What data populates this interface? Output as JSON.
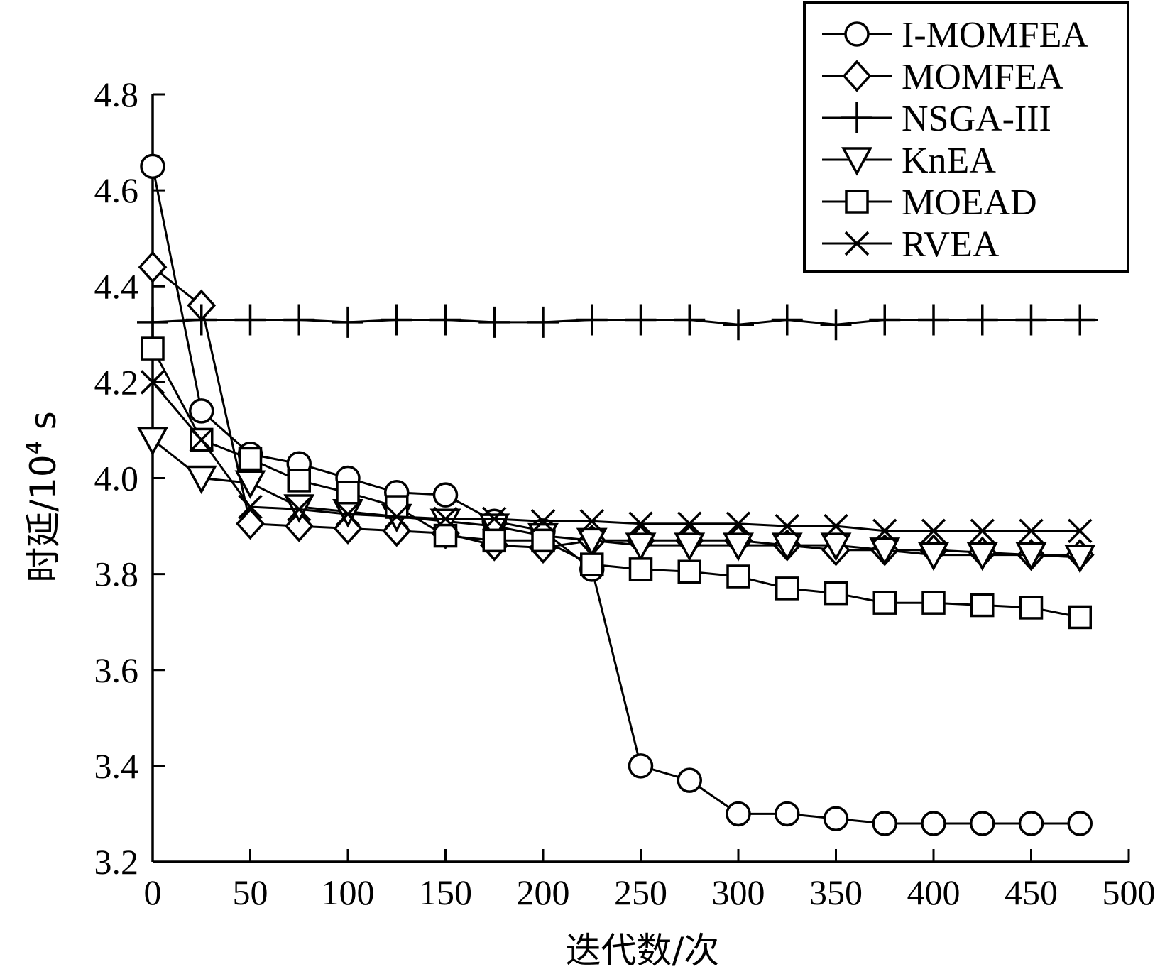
{
  "chart_data": {
    "type": "line",
    "title": "",
    "xlabel": "迭代数/次",
    "ylabel_main": "时延/10",
    "ylabel_sup": "4",
    "ylabel_unit": " s",
    "xlim": [
      0,
      500
    ],
    "ylim": [
      3.2,
      4.8
    ],
    "xticks": [
      0,
      50,
      100,
      150,
      200,
      250,
      300,
      350,
      400,
      450,
      500
    ],
    "yticks": [
      "3.2",
      "3.4",
      "3.6",
      "3.8",
      "4.0",
      "4.2",
      "4.4",
      "4.6",
      "4.8"
    ],
    "grid": false,
    "legend_position": "top-right",
    "x": [
      0,
      25,
      50,
      75,
      100,
      125,
      150,
      175,
      200,
      225,
      250,
      275,
      300,
      325,
      350,
      375,
      400,
      425,
      450,
      475
    ],
    "series": [
      {
        "name": "I-MOMFEA",
        "marker": "circle",
        "values": [
          4.65,
          4.14,
          4.05,
          4.03,
          4.0,
          3.97,
          3.965,
          3.91,
          3.89,
          3.81,
          3.4,
          3.37,
          3.3,
          3.3,
          3.29,
          3.28,
          3.28,
          3.28,
          3.28,
          3.28
        ]
      },
      {
        "name": "MOMFEA",
        "marker": "diamond",
        "values": [
          4.44,
          4.36,
          3.905,
          3.9,
          3.895,
          3.89,
          3.885,
          3.86,
          3.855,
          3.87,
          3.87,
          3.87,
          3.87,
          3.86,
          3.85,
          3.85,
          3.85,
          3.845,
          3.84,
          3.84
        ]
      },
      {
        "name": "NSGA-III",
        "marker": "plus",
        "values": [
          4.325,
          4.33,
          4.33,
          4.33,
          4.325,
          4.33,
          4.33,
          4.325,
          4.325,
          4.33,
          4.33,
          4.33,
          4.32,
          4.33,
          4.32,
          4.33,
          4.33,
          4.33,
          4.33,
          4.33
        ]
      },
      {
        "name": "KnEA",
        "marker": "triangle-down",
        "values": [
          4.08,
          4.0,
          3.99,
          3.94,
          3.93,
          3.92,
          3.91,
          3.9,
          3.88,
          3.87,
          3.86,
          3.86,
          3.86,
          3.86,
          3.86,
          3.85,
          3.84,
          3.84,
          3.84,
          3.835
        ]
      },
      {
        "name": "MOEAD",
        "marker": "square",
        "values": [
          4.27,
          4.08,
          4.04,
          3.995,
          3.97,
          3.94,
          3.88,
          3.87,
          3.87,
          3.82,
          3.81,
          3.805,
          3.795,
          3.77,
          3.76,
          3.74,
          3.74,
          3.735,
          3.73,
          3.71
        ]
      },
      {
        "name": "RVEA",
        "marker": "x",
        "values": [
          4.2,
          4.08,
          3.94,
          3.935,
          3.925,
          3.92,
          3.915,
          3.915,
          3.91,
          3.91,
          3.905,
          3.905,
          3.905,
          3.9,
          3.9,
          3.89,
          3.89,
          3.89,
          3.89,
          3.89
        ]
      }
    ]
  }
}
